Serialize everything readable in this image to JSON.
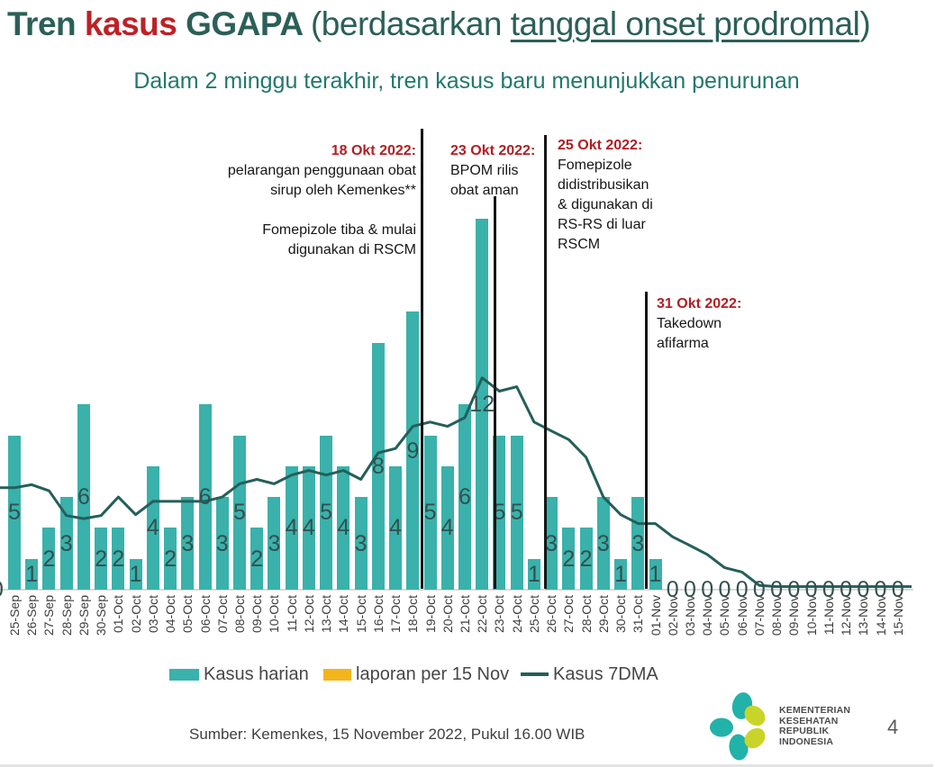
{
  "title": {
    "part_tren": "Tren ",
    "part_kasus": "kasus",
    "part_ggapa": " GGAPA ",
    "part_paren": "(berdasarkan ",
    "part_underline": "tanggal onset prodromal",
    "part_close": ")"
  },
  "subtitle": "Dalam 2 minggu terakhir, tren kasus baru menunjukkan penurunan",
  "annotations": [
    {
      "date": "18 Okt 2022:",
      "body": "pelarangan penggunaan obat\nsirup oleh Kemenkes**\n\nFomepizole tiba & mulai\ndigunakan di RSCM"
    },
    {
      "date": "23 Okt 2022:",
      "body": "BPOM rilis\nobat aman"
    },
    {
      "date": "25 Okt 2022:",
      "body": "Fomepizole\ndidistribusikan\n& digunakan di\nRS-RS di luar\nRSCM"
    },
    {
      "date": "31 Okt 2022:",
      "body": "Takedown\nafifarma"
    }
  ],
  "legend": {
    "items": [
      {
        "label": "Kasus harian",
        "color": "#3ab1ab"
      },
      {
        "label": "laporan per 15 Nov",
        "color": "#f2b51d"
      },
      {
        "label": "Kasus 7DMA",
        "color": "#245f5a"
      }
    ]
  },
  "footer": {
    "source": "Sumber: Kemenkes, 15 November 2022, Pukul 16.00 WIB"
  },
  "logo": {
    "text": "KEMENTERIAN\nKESEHATAN\nREPUBLIK\nINDONESIA",
    "teal": "#21b2aa",
    "lime": "#c9d42a"
  },
  "page_number": "4",
  "chart_data": {
    "type": "bar",
    "title": "Tren kasus GGAPA (berdasarkan tanggal onset prodromal)",
    "xlabel": "",
    "ylabel": "",
    "ylim": [
      0,
      13
    ],
    "grid": false,
    "legend_position": "bottom",
    "clipped_left_label": "0",
    "categories": [
      "25-Sep",
      "26-Sep",
      "27-Sep",
      "28-Sep",
      "29-Sep",
      "30-Sep",
      "01-Oct",
      "02-Oct",
      "03-Oct",
      "04-Oct",
      "05-Oct",
      "06-Oct",
      "07-Oct",
      "08-Oct",
      "09-Oct",
      "10-Oct",
      "11-Oct",
      "12-Oct",
      "13-Oct",
      "14-Oct",
      "15-Oct",
      "16-Oct",
      "17-Oct",
      "18-Oct",
      "19-Oct",
      "20-Oct",
      "21-Oct",
      "22-Oct",
      "23-Oct",
      "24-Oct",
      "25-Oct",
      "26-Oct",
      "27-Oct",
      "28-Oct",
      "29-Oct",
      "30-Oct",
      "31-Oct",
      "01-Nov",
      "02-Nov",
      "03-Nov",
      "04-Nov",
      "05-Nov",
      "06-Nov",
      "07-Nov",
      "08-Nov",
      "09-Nov",
      "10-Nov",
      "11-Nov",
      "12-Nov",
      "13-Nov",
      "14-Nov",
      "15-Nov"
    ],
    "series": [
      {
        "name": "Kasus harian",
        "type": "bar",
        "color": "#3ab1ab",
        "values": [
          5,
          1,
          2,
          3,
          6,
          2,
          2,
          1,
          4,
          2,
          3,
          6,
          3,
          5,
          2,
          3,
          4,
          4,
          5,
          4,
          3,
          8,
          4,
          9,
          5,
          4,
          6,
          12,
          5,
          5,
          1,
          3,
          2,
          2,
          3,
          1,
          3,
          1,
          0,
          0,
          0,
          0,
          0,
          0,
          0,
          0,
          0,
          0,
          0,
          0,
          0,
          0
        ]
      },
      {
        "name": "laporan per 15 Nov",
        "type": "bar",
        "color": "#f2b51d",
        "values": []
      },
      {
        "name": "Kasus 7DMA",
        "type": "line",
        "color": "#245f5a",
        "values": [
          3.3,
          3.4,
          3.2,
          2.4,
          2.3,
          2.4,
          3.0,
          2.43,
          2.86,
          2.86,
          2.86,
          2.86,
          3.0,
          3.43,
          3.57,
          3.43,
          3.71,
          3.86,
          3.71,
          3.86,
          3.57,
          4.43,
          4.57,
          5.29,
          5.43,
          5.29,
          5.57,
          6.86,
          6.43,
          6.57,
          5.43,
          5.14,
          4.86,
          4.29,
          3.0,
          2.43,
          2.14,
          2.14,
          1.71,
          1.43,
          1.14,
          0.71,
          0.57,
          0.14,
          0.1,
          0.1,
          0.1,
          0.1,
          0.1,
          0.1,
          0.1,
          0.1
        ]
      }
    ]
  }
}
